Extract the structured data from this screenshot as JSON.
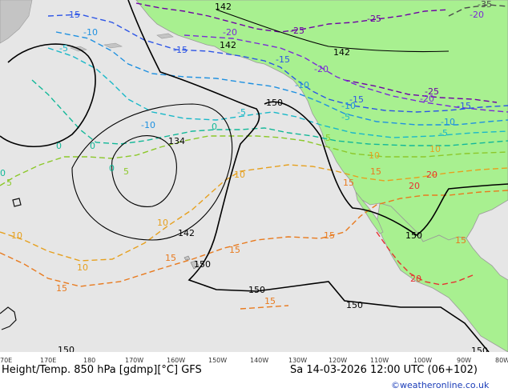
{
  "footer": {
    "title": "Height/Temp. 850 hPa [gdmp][°C] GFS",
    "datetime": "Sa 14-03-2026 12:00 UTC (06+102)",
    "credit": "©weatheronline.co.uk"
  },
  "longitudes": [
    "70E",
    "170E",
    "180",
    "170W",
    "160W",
    "150W",
    "140W",
    "130W",
    "120W",
    "110W",
    "100W",
    "90W",
    "80W"
  ],
  "height_labels": [
    "142",
    "142",
    "142",
    "150",
    "134",
    "142",
    "150",
    "150",
    "150",
    "150",
    "150",
    "150"
  ],
  "temp_labels": {
    "m35": [
      "-35"
    ],
    "m25": [
      "-25",
      "-25",
      "-25"
    ],
    "m20": [
      "-20",
      "-20",
      "-20",
      "-20"
    ],
    "m15": [
      "-15",
      "-15",
      "-15",
      "-15",
      "-15"
    ],
    "m10": [
      "-10",
      "-10",
      "-10",
      "-10",
      "-10"
    ],
    "m5": [
      "-5",
      "-5",
      "-5",
      "-5"
    ],
    "z0": [
      "0",
      "0",
      "0",
      "0",
      "0"
    ],
    "p5": [
      "5",
      "5",
      "5"
    ],
    "p10": [
      "10",
      "10",
      "10",
      "10",
      "10",
      "10"
    ],
    "p15": [
      "15",
      "15",
      "15",
      "15",
      "15",
      "15",
      "15",
      "15"
    ],
    "p20": [
      "20",
      "20",
      "20"
    ]
  },
  "colors": {
    "ocean": "#e6e6e6",
    "land_green": "#a8f090",
    "land_gray": "#c4c4c4",
    "height": "#000000",
    "m35": "#4b4b4b",
    "m25": "#6e00a6",
    "m20": "#7a2bd6",
    "m15": "#2d55e6",
    "m10": "#1e90e0",
    "m5": "#19b8c8",
    "z0": "#12b898",
    "p5": "#8cc82a",
    "p10": "#e6a01e",
    "p15": "#e87a1e",
    "p20": "#e63232"
  }
}
